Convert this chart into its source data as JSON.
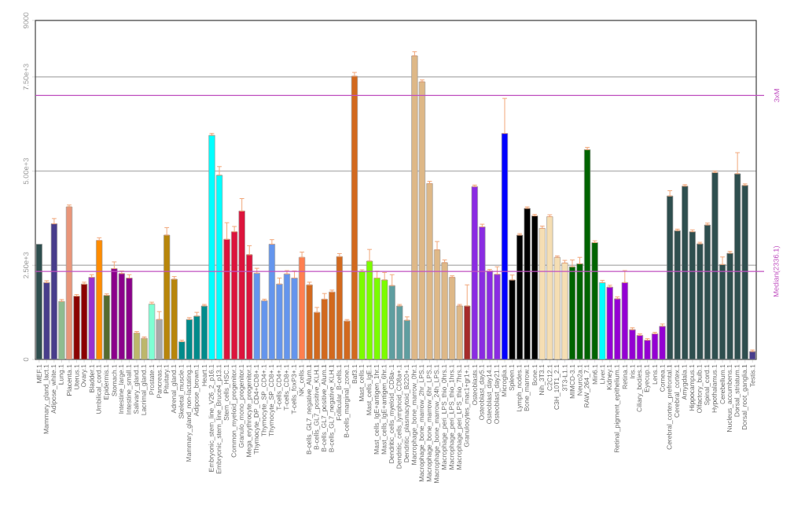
{
  "chart_data": {
    "type": "bar",
    "categories": [
      "MEF.1",
      "Mammary_gland_lact.1",
      "Adipose_white.1",
      "Lung.1",
      "Placenta.1",
      "Uterus.1",
      "Ovary.1",
      "Bladder.1",
      "Umbilical_cord.1",
      "Epidermis.1",
      "Stomach.1",
      "Intestine_large.1",
      "Intestine_small.1",
      "Salivary_gland.1",
      "Lacrimal_gland.1",
      "Prostate.1",
      "Pancreas.1",
      "Pituitary.1",
      "Adrenal_gland.1",
      "Skeletal_muscle.1",
      "Mammary_gland_non-lactating.1",
      "Adipose_brown.1",
      "Heart.1",
      "Embryonic_stem_line_V26_2_p16.1",
      "Embryonic_stem_line_Bruce4_p13.1",
      "Stem_cells_HSC.1",
      "Common_myeloid_progenitor.1",
      "Granulo_mono_progenitor.1",
      "Mega_erythrocyte_progenitor.1",
      "Thymocyte_DP_CD4+CD8+.1",
      "Thymocyte_SP_CD4+.1",
      "Thymocyte_SP_CD8+.1",
      "T-cells_CD4+.1",
      "T-cells_CD8+.1",
      "T-cells_foxP3+.1",
      "NK_cells.1",
      "B-cells_GL7_negative_Alum.1",
      "B-cells_GL7_positive_KLH.1",
      "B-cells_GL7_positive_Alum.1",
      "B-cells_GL7_negative_KLH.1",
      "Follicular_B-cells.1",
      "B-cells_marginal_zone.1",
      "Baf3.1",
      "Mast_cells.1",
      "Mast_cells_IgE.1",
      "Mast_cells_IgE+antigen_1hr.1",
      "Mast_cells_IgE+antigen_6hr.1",
      "Dendritic_cells_myeloid_CD8a-.1",
      "Dendritic_cells_lymphoid_CD8a+.1",
      "Dendritic_plasmacytoid_B220+.1",
      "Macrophage_bone_marrow_0hr.1",
      "Macrophage_bone_marrow_2hr_LPS.1",
      "Macrophage_bone_marrow_6hr_LPS.1",
      "Macrophage_bone_marrow_24h_LPS.1",
      "Macrophage_peri_LPS_thio_0hrs.1",
      "Macrophage_peri_LPS_thio_1hrs.1",
      "Macrophage_peri_LPS_thio_7hrs.1",
      "Granulocytes_mac1+gr1+.1",
      "Osteoblasts.1",
      "Osteoblast_day5.1",
      "Osteoblast_day14.1",
      "Osteoblast_day21.1",
      "Microglia.1",
      "Spleen.1",
      "Lymph_nodes.1",
      "Bone_marrow.1",
      "Bone.1",
      "Nih_3T3.1",
      "C2C12.1",
      "C3H_10T1_2.1",
      "3T3-L1.1",
      "MIMCD-3.1",
      "Neuro2a.1",
      "RAW_264_7.1",
      "Min6.1",
      "Liver.1",
      "Kidney.1",
      "Retinal_pigment_epithelium.1",
      "Retina.1",
      "Iris.1",
      "Ciliary_bodies.1",
      "Eyecup.1",
      "Lens.1",
      "Cornea.1",
      "Cerebral_cortex_prefrontal.1",
      "Cerebral_cortex.1",
      "Amygdala.1",
      "Hippocampus.1",
      "Olfactory_bulb.1",
      "Spinal_cord.1",
      "Hypothalamus.1",
      "Cerebellum.1",
      "Nucleus_accumbens.1",
      "Dorsal_striatum.1",
      "Dorsal_root_ganglia.1",
      "Testis.1"
    ],
    "values": [
      3060,
      2040,
      3600,
      1540,
      4050,
      1680,
      2000,
      2180,
      3160,
      1700,
      2410,
      2280,
      2160,
      700,
      560,
      1470,
      1060,
      3300,
      2130,
      470,
      1060,
      1150,
      1420,
      5950,
      4890,
      3190,
      3390,
      3940,
      2780,
      2290,
      1560,
      3060,
      2000,
      2270,
      2160,
      2710,
      1980,
      1250,
      1600,
      1790,
      2730,
      1020,
      7520,
      2330,
      2610,
      2160,
      2110,
      1960,
      1420,
      1040,
      8060,
      7370,
      4670,
      2910,
      2570,
      2180,
      1420,
      1420,
      4590,
      3520,
      2350,
      2260,
      6000,
      2110,
      3300,
      4010,
      3810,
      3480,
      3790,
      2710,
      2560,
      2460,
      2540,
      5570,
      3100,
      2040,
      1920,
      1610,
      2040,
      790,
      640,
      510,
      680,
      880,
      4340,
      3420,
      4600,
      3390,
      3070,
      3570,
      4960,
      2520,
      2820,
      4930,
      4620,
      210
    ],
    "errors": [
      null,
      [
        2040,
        2090
      ],
      [
        3600,
        3740
      ],
      [
        1540,
        1590
      ],
      [
        4050,
        4100
      ],
      [
        1680,
        1720
      ],
      [
        2000,
        2050
      ],
      [
        2180,
        2250
      ],
      [
        3160,
        3230
      ],
      [
        1700,
        1740
      ],
      [
        2410,
        2590
      ],
      [
        2280,
        2350
      ],
      [
        2160,
        2250
      ],
      [
        700,
        740
      ],
      [
        560,
        600
      ],
      [
        1470,
        1520
      ],
      [
        1060,
        1270
      ],
      [
        3300,
        3500
      ],
      [
        2130,
        2200
      ],
      [
        470,
        510
      ],
      [
        1060,
        1110
      ],
      [
        1150,
        1250
      ],
      [
        1420,
        1460
      ],
      [
        5950,
        6000
      ],
      [
        4890,
        5120
      ],
      [
        3190,
        3630
      ],
      [
        3390,
        3530
      ],
      [
        3940,
        4270
      ],
      [
        2780,
        3020
      ],
      [
        2290,
        2420
      ],
      [
        1560,
        1600
      ],
      [
        3060,
        3180
      ],
      [
        2000,
        2160
      ],
      [
        2270,
        2360
      ],
      [
        2160,
        2350
      ],
      [
        2710,
        2850
      ],
      [
        1980,
        2050
      ],
      [
        1250,
        1380
      ],
      [
        1600,
        1750
      ],
      [
        1790,
        1840
      ],
      [
        2730,
        2810
      ],
      [
        1020,
        1060
      ],
      [
        7520,
        7620
      ],
      [
        2330,
        2380
      ],
      [
        2610,
        2920
      ],
      [
        2160,
        2340
      ],
      [
        2110,
        2310
      ],
      [
        1960,
        2250
      ],
      [
        1420,
        1460
      ],
      [
        1040,
        1130
      ],
      [
        8060,
        8170
      ],
      [
        7370,
        7420
      ],
      [
        4670,
        4730
      ],
      [
        2910,
        3130
      ],
      [
        2570,
        2640
      ],
      [
        2180,
        2220
      ],
      [
        1420,
        1460
      ],
      [
        1420,
        1980
      ],
      [
        4590,
        4630
      ],
      [
        3520,
        3590
      ],
      [
        2350,
        2390
      ],
      [
        2260,
        2460
      ],
      [
        6000,
        6930
      ],
      [
        2110,
        2240
      ],
      [
        3300,
        3340
      ],
      [
        4010,
        4050
      ],
      [
        3810,
        3850
      ],
      [
        3480,
        3540
      ],
      [
        3790,
        3840
      ],
      [
        2710,
        2750
      ],
      [
        2560,
        2630
      ],
      [
        2460,
        2640
      ],
      [
        2540,
        2710
      ],
      [
        5570,
        5630
      ],
      [
        3100,
        3150
      ],
      [
        2040,
        2100
      ],
      [
        1920,
        1970
      ],
      [
        1610,
        1660
      ],
      [
        2040,
        2360
      ],
      [
        790,
        840
      ],
      [
        640,
        680
      ],
      [
        510,
        550
      ],
      [
        680,
        720
      ],
      [
        880,
        940
      ],
      [
        4340,
        4480
      ],
      [
        3420,
        3460
      ],
      [
        4600,
        4640
      ],
      [
        3390,
        3440
      ],
      [
        3070,
        3110
      ],
      [
        3570,
        3620
      ],
      [
        4960,
        5000
      ],
      [
        2520,
        2720
      ],
      [
        2820,
        2870
      ],
      [
        4930,
        5490
      ],
      [
        4620,
        4660
      ],
      [
        210,
        250
      ]
    ],
    "colors": [
      "#2f4f4f",
      "#483d8b",
      "#483d8b",
      "#8fbc8f",
      "#e9967a",
      "#8b0000",
      "#8b0000",
      "#9932cc",
      "#ff8c00",
      "#556b2f",
      "#8b008b",
      "#8b008b",
      "#8b008b",
      "#bdb76b",
      "#bdb76b",
      "#7fffd4",
      "#a9a9a9",
      "#b8860b",
      "#b8860b",
      "#008b8b",
      "#008b8b",
      "#008b8b",
      "#008b8b",
      "#00ffff",
      "#00ffff",
      "#dc143c",
      "#dc143c",
      "#dc143c",
      "#dc143c",
      "#6495ed",
      "#6495ed",
      "#6495ed",
      "#6495ed",
      "#6495ed",
      "#6495ed",
      "#ff7f50",
      "#d2691e",
      "#d2691e",
      "#d2691e",
      "#d2691e",
      "#d2691e",
      "#d2691e",
      "#d2691e",
      "#7cfc00",
      "#7cfc00",
      "#7cfc00",
      "#7cfc00",
      "#5f9ea0",
      "#5f9ea0",
      "#5f9ea0",
      "#deb887",
      "#deb887",
      "#deb887",
      "#deb887",
      "#deb887",
      "#deb887",
      "#deb887",
      "#a52a2a",
      "#8a2be2",
      "#8a2be2",
      "#8a2be2",
      "#8a2be2",
      "#0000ff",
      "#000000",
      "#000000",
      "#000000",
      "#000000",
      "#f5deb3",
      "#f5deb3",
      "#f5deb3",
      "#f5deb3",
      "#006400",
      "#006400",
      "#006400",
      "#006400",
      "#00ffff",
      "#9400d3",
      "#9400d3",
      "#9400d3",
      "#9400d3",
      "#9400d3",
      "#9400d3",
      "#9400d3",
      "#9400d3",
      "#2f4f4f",
      "#2f4f4f",
      "#2f4f4f",
      "#2f4f4f",
      "#2f4f4f",
      "#2f4f4f",
      "#2f4f4f",
      "#2f4f4f",
      "#2f4f4f",
      "#2f4f4f",
      "#2f4f4f",
      "#483d8b"
    ],
    "ylim": [
      0,
      9000
    ],
    "yticks": [
      0,
      {
        "value": 2500,
        "label": "2.50e+3"
      },
      {
        "value": 5000,
        "label": "5.00e+3"
      },
      {
        "value": 7500,
        "label": "7.50e+3"
      },
      9000
    ],
    "grid": "y",
    "ref_lines": [
      {
        "axis": "y",
        "value": 7008.3,
        "label": "3xM",
        "color": "#c050c0"
      },
      {
        "axis": "y",
        "value": 2336.1,
        "label": "Median(2336.1)",
        "color": "#c050c0"
      }
    ]
  }
}
